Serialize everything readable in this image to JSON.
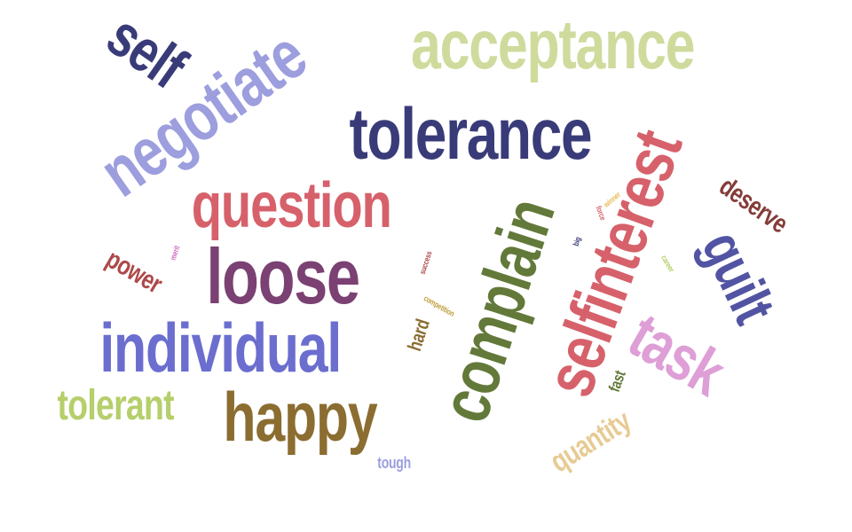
{
  "words": [
    {
      "text": "self",
      "color": "#393b79",
      "orientation": "rotated"
    },
    {
      "text": "negotiate",
      "color": "#9c9ede",
      "orientation": "rotated"
    },
    {
      "text": "acceptance",
      "color": "#cedb9c",
      "orientation": "horizontal"
    },
    {
      "text": "tolerance",
      "color": "#393b79",
      "orientation": "horizontal"
    },
    {
      "text": "question",
      "color": "#d6616b",
      "orientation": "horizontal"
    },
    {
      "text": "selfinterest",
      "color": "#d6616b",
      "orientation": "vertical"
    },
    {
      "text": "deserve",
      "color": "#843c39",
      "orientation": "rotated"
    },
    {
      "text": "guilt",
      "color": "#5254a3",
      "orientation": "rotated"
    },
    {
      "text": "complain",
      "color": "#637939",
      "orientation": "vertical"
    },
    {
      "text": "loose",
      "color": "#7b4173",
      "orientation": "horizontal"
    },
    {
      "text": "power",
      "color": "#ad494a",
      "orientation": "rotated"
    },
    {
      "text": "individual",
      "color": "#6b6ecf",
      "orientation": "horizontal"
    },
    {
      "text": "task",
      "color": "#de9ed6",
      "orientation": "rotated"
    },
    {
      "text": "hard",
      "color": "#8c6d31",
      "orientation": "vertical"
    },
    {
      "text": "tolerant",
      "color": "#b5cf6b",
      "orientation": "horizontal"
    },
    {
      "text": "happy",
      "color": "#8c6d31",
      "orientation": "horizontal"
    },
    {
      "text": "fast",
      "color": "#637939",
      "orientation": "rotated"
    },
    {
      "text": "quantity",
      "color": "#e7cb94",
      "orientation": "rotated"
    },
    {
      "text": "tough",
      "color": "#9c9ede",
      "orientation": "horizontal"
    },
    {
      "text": "merit",
      "color": "#ce6dbd",
      "orientation": "vertical"
    },
    {
      "text": "success",
      "color": "#ad494a",
      "orientation": "vertical"
    },
    {
      "text": "competition",
      "color": "#bd9e39",
      "orientation": "rotated"
    },
    {
      "text": "big",
      "color": "#393b79",
      "orientation": "vertical"
    },
    {
      "text": "winner",
      "color": "#e7ba52",
      "orientation": "rotated"
    },
    {
      "text": "force",
      "color": "#d6616b",
      "orientation": "rotated"
    },
    {
      "text": "career",
      "color": "#b5cf6b",
      "orientation": "rotated"
    }
  ]
}
